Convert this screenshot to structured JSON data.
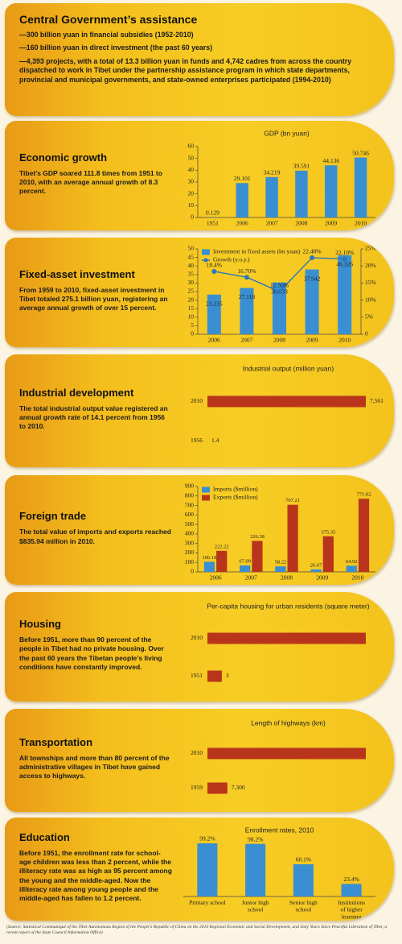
{
  "panels": [
    {
      "heading": "Central Government’s assistance",
      "text": [
        "—300 billion yuan in financial subsidies (1952-2010)",
        "—160 billion yuan in direct investment (the past 60 years)",
        "—4,393 projects, with a total of 13.3 billion yuan in funds and 4,742 cadres from across the country dispatched to work in Tibet under the partnership assistance program in which state departments, provincial and municipal governments, and state-owned enterprises participated (1994-2010)"
      ]
    },
    {
      "heading": "Economic growth",
      "text": [
        "Tibet’s GDP soared 111.8 times from 1951 to 2010, with an average annual growth of 8.3 percent."
      ]
    },
    {
      "heading": "Fixed-asset investment",
      "text": [
        "From 1959 to 2010, fixed-asset investment in Tibet totaled 275.1 billion yuan, registering an average annual growth of over 15 percent."
      ]
    },
    {
      "heading": "Industrial development",
      "text": [
        "The total industrial output value registered an annual growth rate of 14.1 percent from 1956 to 2010."
      ]
    },
    {
      "heading": "Foreign trade",
      "text": [
        "The total value of imports and exports reached $835.94 million in 2010."
      ]
    },
    {
      "heading": "Housing",
      "text": [
        "Before 1951, more than 90 percent of the people in Tibet had no private housing. Over the past 60 years the Tibetan people’s living conditions have constantly improved."
      ]
    },
    {
      "heading": "Transportation",
      "text": [
        "All townships and more than 80 percent of the administrative villages in Tibet have gained access to highways."
      ]
    },
    {
      "heading": "Education",
      "text": [
        "Before 1951, the enrollment rate for school-age children was less than 2 percent, while the illiteracy rate was as high as 95 percent among the young and the middle-aged. Now the illiteracy rate among young people and the middle-aged has fallen to 1.2 percent."
      ]
    }
  ],
  "chart_data": [
    {
      "type": "bar",
      "title": "GDP (bn yuan)",
      "categories": [
        "1951",
        "2006",
        "2007",
        "2008",
        "2009",
        "2010"
      ],
      "values": [
        0.129,
        29.101,
        34.219,
        39.591,
        44.136,
        50.746
      ],
      "color": "#3a8fd2",
      "ylim": [
        0,
        60
      ],
      "yticks": [
        0,
        10,
        20,
        30,
        40,
        50,
        60
      ]
    },
    {
      "type": "bar",
      "categories": [
        "2006",
        "2007",
        "2008",
        "2009",
        "2010"
      ],
      "series": [
        {
          "name": "Investment in fixed assets (bn yuan)",
          "color": "#3a8fd2",
          "values": [
            23.235,
            27.118,
            30.333,
            37.942,
            46.326
          ]
        },
        {
          "name": "Growth (y.o.y.)",
          "color": "#2a78b8",
          "axis": "y2",
          "values": [
            18.4,
            16.7,
            12.5,
            22.4,
            22.1
          ],
          "value_labels": [
            "18.4%",
            "16.70%",
            "12.50%",
            "22.40%",
            "22.10%"
          ]
        }
      ],
      "ylim": [
        0,
        50
      ],
      "yticks": [
        0,
        5,
        10,
        15,
        20,
        25,
        30,
        35,
        40,
        45,
        50
      ],
      "y2lim": [
        0,
        25
      ],
      "y2ticks": [
        0,
        {
          "value": 5,
          "label": "5%"
        },
        {
          "value": 10,
          "label": "10%"
        },
        {
          "value": 15,
          "label": "15%"
        },
        {
          "value": 20,
          "label": "20%"
        },
        {
          "value": 25,
          "label": "25%"
        }
      ]
    },
    {
      "type": "barh",
      "title": "Industrial output (million yuan)",
      "categories": [
        "2010",
        "1956"
      ],
      "values": [
        7561,
        1.4
      ],
      "value_labels": [
        "7,561",
        "1.4"
      ],
      "color": "#b8351c"
    },
    {
      "type": "bar",
      "categories": [
        "2006",
        "2007",
        "2008",
        "2009",
        "2010"
      ],
      "series": [
        {
          "name": "Imports ($million)",
          "color": "#3a8fd2",
          "values": [
            106.18,
            67.09,
            58.22,
            26.67,
            64.92
          ]
        },
        {
          "name": "Exports ($million)",
          "color": "#b8351c",
          "values": [
            222.22,
            326.38,
            707.21,
            375.35,
            771.02
          ]
        }
      ],
      "ylim": [
        0,
        900
      ],
      "yticks": [
        0,
        100,
        200,
        300,
        400,
        500,
        600,
        700,
        800,
        900
      ]
    },
    {
      "type": "barh",
      "title": "Per-capita housing for urban residents (square meter)",
      "categories": [
        "2010",
        "1951"
      ],
      "values": [
        33,
        3
      ],
      "value_labels": [
        null,
        "3"
      ],
      "color": "#b8351c"
    },
    {
      "type": "barh",
      "title": "Length of highways (km)",
      "categories": [
        "2010",
        "1959"
      ],
      "values": [
        58000,
        7300
      ],
      "value_labels": [
        null,
        "7,300"
      ],
      "color": "#b8351c"
    },
    {
      "type": "bar",
      "title": "Enrollment rates, 2010",
      "categories": [
        "Primary school",
        "Junior high school",
        "Senior high school",
        "Institutions of higher learning"
      ],
      "values": [
        99.2,
        98.2,
        60.1,
        23.4
      ],
      "value_labels": [
        "99.2%",
        "98.2%",
        "60.1%",
        "23.4%"
      ],
      "color": "#3a8fd2"
    }
  ],
  "source": "(Source: Statistical Communiqué of the Tibet Autonomous Region of the People’s Republic of China on the 2010 Regional Economic and Social Development, and Sixty Years Since Peaceful Liberation of Tibet, a recent report of the State Council Information Office)"
}
